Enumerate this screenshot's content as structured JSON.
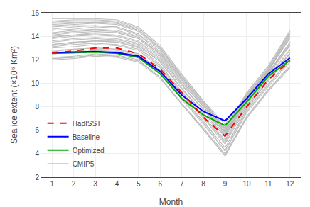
{
  "chart_data": {
    "type": "line",
    "x": [
      1,
      2,
      3,
      4,
      5,
      6,
      7,
      8,
      9,
      10,
      11,
      12
    ],
    "xlabel": "Month",
    "ylabel": "Sea ice extent (×10⁶ Km²)",
    "xlim": [
      0.5,
      12.5
    ],
    "ylim": [
      2,
      16
    ],
    "xticks": [
      1,
      2,
      3,
      4,
      5,
      6,
      7,
      8,
      9,
      10,
      11,
      12
    ],
    "yticks": [
      2,
      4,
      6,
      8,
      10,
      12,
      14,
      16
    ],
    "grid": true,
    "legend": "lower left",
    "series": [
      {
        "name": "CMIP5",
        "color": "#BBBBBB",
        "values": [
          14.0,
          14.1,
          14.3,
          14.3,
          13.8,
          12.5,
          10.5,
          8.5,
          6.5,
          9.0,
          11.0,
          13.2
        ]
      },
      {
        "name": "CMIP5",
        "color": "#BBBBBB",
        "values": [
          13.2,
          13.4,
          13.6,
          13.6,
          13.2,
          11.8,
          9.5,
          7.5,
          5.5,
          8.5,
          10.5,
          12.5
        ]
      },
      {
        "name": "CMIP5",
        "color": "#BBBBBB",
        "values": [
          12.5,
          12.6,
          12.8,
          12.7,
          12.3,
          11.0,
          8.8,
          6.8,
          4.5,
          7.8,
          10.0,
          11.8
        ]
      },
      {
        "name": "CMIP5",
        "color": "#BBBBBB",
        "values": [
          15.5,
          15.5,
          15.5,
          15.4,
          14.8,
          13.2,
          10.8,
          8.5,
          6.2,
          9.2,
          11.5,
          14.5
        ]
      },
      {
        "name": "CMIP5",
        "color": "#BBBBBB",
        "values": [
          14.8,
          14.9,
          14.9,
          14.8,
          14.2,
          12.5,
          10.2,
          8.0,
          5.5,
          8.8,
          11.0,
          14.0
        ]
      },
      {
        "name": "CMIP5",
        "color": "#BBBBBB",
        "values": [
          13.8,
          14.0,
          14.1,
          14.0,
          13.5,
          12.0,
          9.8,
          7.8,
          5.8,
          8.5,
          10.7,
          13.2
        ]
      },
      {
        "name": "CMIP5",
        "color": "#BBBBBB",
        "values": [
          13.0,
          13.1,
          13.3,
          13.2,
          12.8,
          11.3,
          9.0,
          7.0,
          4.8,
          8.0,
          10.2,
          12.3
        ]
      },
      {
        "name": "CMIP5",
        "color": "#BBBBBB",
        "values": [
          15.0,
          15.1,
          15.2,
          15.1,
          14.5,
          13.0,
          10.5,
          8.3,
          6.0,
          9.0,
          11.2,
          14.2
        ]
      },
      {
        "name": "CMIP5",
        "color": "#BBBBBB",
        "values": [
          14.2,
          14.4,
          14.5,
          14.4,
          13.9,
          12.3,
          10.0,
          8.0,
          5.8,
          8.8,
          10.9,
          13.5
        ]
      },
      {
        "name": "CMIP5",
        "color": "#BBBBBB",
        "values": [
          13.5,
          13.7,
          13.8,
          13.7,
          13.3,
          11.8,
          9.5,
          7.4,
          5.2,
          8.3,
          10.5,
          12.8
        ]
      },
      {
        "name": "CMIP5",
        "color": "#BBBBBB",
        "values": [
          12.8,
          12.9,
          13.0,
          12.9,
          12.5,
          11.0,
          8.7,
          6.6,
          4.3,
          7.6,
          9.8,
          12.0
        ]
      },
      {
        "name": "CMIP5",
        "color": "#BBBBBB",
        "values": [
          12.0,
          12.1,
          12.3,
          12.2,
          11.8,
          10.4,
          8.2,
          6.0,
          3.8,
          7.0,
          9.3,
          11.3
        ]
      },
      {
        "name": "CMIP5",
        "color": "#BBBBBB",
        "values": [
          14.5,
          14.6,
          14.8,
          14.7,
          14.1,
          12.6,
          10.3,
          8.2,
          5.9,
          8.9,
          11.1,
          13.8
        ]
      },
      {
        "name": "CMIP5",
        "color": "#BBBBBB",
        "values": [
          13.3,
          13.5,
          13.6,
          13.5,
          13.0,
          11.5,
          9.2,
          7.2,
          5.0,
          8.2,
          10.4,
          12.6
        ]
      },
      {
        "name": "CMIP5",
        "color": "#BBBBBB",
        "values": [
          12.2,
          12.3,
          12.5,
          12.4,
          12.0,
          10.5,
          8.3,
          6.2,
          4.0,
          7.2,
          9.5,
          11.5
        ]
      },
      {
        "name": "CMIP5",
        "color": "#BBBBBB",
        "values": [
          15.2,
          15.3,
          15.3,
          15.2,
          14.6,
          13.0,
          10.6,
          8.4,
          6.1,
          9.1,
          11.3,
          14.3
        ]
      },
      {
        "name": "CMIP5",
        "color": "#BBBBBB",
        "values": [
          13.6,
          13.8,
          13.9,
          13.8,
          13.4,
          11.9,
          9.6,
          7.5,
          5.4,
          8.4,
          10.6,
          12.9
        ]
      },
      {
        "name": "CMIP5",
        "color": "#BBBBBB",
        "values": [
          14.9,
          15.0,
          15.1,
          15.0,
          14.4,
          12.8,
          10.4,
          8.2,
          5.9,
          8.9,
          11.1,
          14.1
        ]
      },
      {
        "name": "CMIP5",
        "color": "#BBBBBB",
        "values": [
          13.3,
          13.5,
          13.6,
          13.5,
          13.1,
          11.6,
          9.3,
          7.2,
          5.1,
          8.1,
          10.3,
          12.6
        ]
      },
      {
        "name": "CMIP5",
        "color": "#BBBBBB",
        "values": [
          12.1,
          12.2,
          12.4,
          12.3,
          11.9,
          10.5,
          8.2,
          6.1,
          3.9,
          7.1,
          9.4,
          11.4
        ]
      },
      {
        "name": "CMIP5",
        "color": "#BBBBBB",
        "values": [
          14.3,
          14.5,
          14.6,
          14.5,
          14.0,
          12.4,
          10.1,
          8.0,
          5.7,
          8.7,
          10.9,
          13.5
        ]
      },
      {
        "name": "CMIP5",
        "color": "#BBBBBB",
        "values": [
          12.6,
          12.7,
          12.9,
          12.8,
          12.4,
          10.9,
          8.6,
          6.5,
          4.2,
          7.5,
          9.7,
          11.8
        ]
      },
      {
        "name": "CMIP5",
        "color": "#BBBBBB",
        "values": [
          15.3,
          15.4,
          15.4,
          15.3,
          14.7,
          13.1,
          10.7,
          8.5,
          6.2,
          9.2,
          11.4,
          14.4
        ]
      },
      {
        "name": "CMIP5",
        "color": "#BBBBBB",
        "values": [
          13.9,
          14.1,
          14.2,
          14.1,
          13.6,
          12.1,
          9.8,
          7.7,
          5.6,
          8.6,
          10.8,
          13.3
        ]
      },
      {
        "name": "CMIP5",
        "color": "#BBBBBB",
        "values": [
          12.7,
          12.9,
          13.0,
          12.9,
          12.5,
          11.1,
          8.8,
          6.7,
          4.5,
          7.7,
          9.9,
          12.1
        ]
      },
      {
        "name": "CMIP5",
        "color": "#BBBBBB",
        "values": [
          14.6,
          14.8,
          14.9,
          14.8,
          14.2,
          12.7,
          10.3,
          8.1,
          5.9,
          8.8,
          11.1,
          13.9
        ]
      },
      {
        "name": "CMIP5",
        "color": "#BBBBBB",
        "values": [
          13.1,
          13.3,
          13.4,
          13.3,
          12.9,
          11.4,
          9.1,
          7.1,
          4.9,
          7.9,
          10.2,
          12.5
        ]
      },
      {
        "name": "CMIP5",
        "color": "#BBBBBB",
        "values": [
          12.1,
          12.2,
          12.4,
          12.3,
          11.9,
          10.5,
          8.2,
          6.1,
          3.8,
          7.1,
          9.4,
          11.4
        ]
      },
      {
        "name": "CMIP5",
        "color": "#BBBBBB",
        "values": [
          14.1,
          14.3,
          14.4,
          14.3,
          13.8,
          12.2,
          9.9,
          7.8,
          5.6,
          8.6,
          10.8,
          13.4
        ]
      },
      {
        "name": "CMIP5",
        "color": "#BBBBBB",
        "values": [
          15.1,
          15.2,
          15.2,
          15.1,
          14.5,
          12.9,
          10.5,
          8.3,
          6.1,
          9.0,
          11.2,
          14.2
        ]
      },
      {
        "name": "Optimized",
        "color": "#00AA00",
        "values": [
          12.55,
          12.6,
          12.65,
          12.55,
          12.2,
          10.8,
          8.7,
          7.3,
          6.4,
          8.4,
          10.6,
          11.95
        ]
      },
      {
        "name": "Baseline",
        "color": "#0000FF",
        "values": [
          12.6,
          12.65,
          12.7,
          12.6,
          12.3,
          11.0,
          9.0,
          7.6,
          6.8,
          8.7,
          10.8,
          12.15
        ]
      },
      {
        "name": "HadISST",
        "color": "#FF0000",
        "line_style": "dashed",
        "values": [
          12.6,
          12.75,
          13.0,
          13.0,
          12.5,
          11.2,
          9.2,
          7.1,
          5.5,
          8.0,
          10.3,
          11.9
        ]
      }
    ]
  }
}
